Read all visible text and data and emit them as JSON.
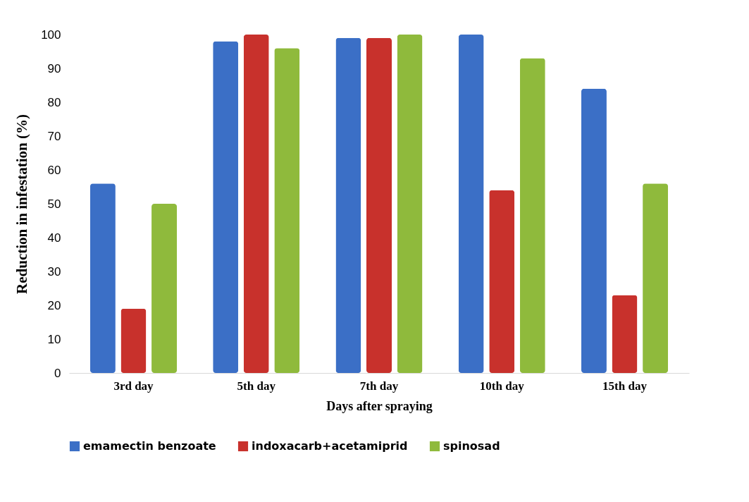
{
  "chart_data": {
    "type": "bar",
    "xlabel": "Days after spraying",
    "ylabel": "Reduction in infestation (%)",
    "categories": [
      "3rd day",
      "5th day",
      "7th day",
      "10th day",
      "15th day"
    ],
    "series": [
      {
        "name": "emamectin benzoate",
        "color": "#3b6fc6",
        "values": [
          56,
          98,
          99,
          100,
          84
        ]
      },
      {
        "name": "indoxacarb+acetamiprid",
        "color": "#c8312c",
        "values": [
          19,
          100,
          99,
          54,
          23
        ]
      },
      {
        "name": "spinosad",
        "color": "#8fba3c",
        "values": [
          50,
          96,
          100,
          93,
          56
        ]
      }
    ],
    "ylim": [
      0,
      100
    ],
    "yticks": [
      0,
      10,
      20,
      30,
      40,
      50,
      60,
      70,
      80,
      90,
      100
    ],
    "grid": false,
    "legend": "bottom"
  }
}
